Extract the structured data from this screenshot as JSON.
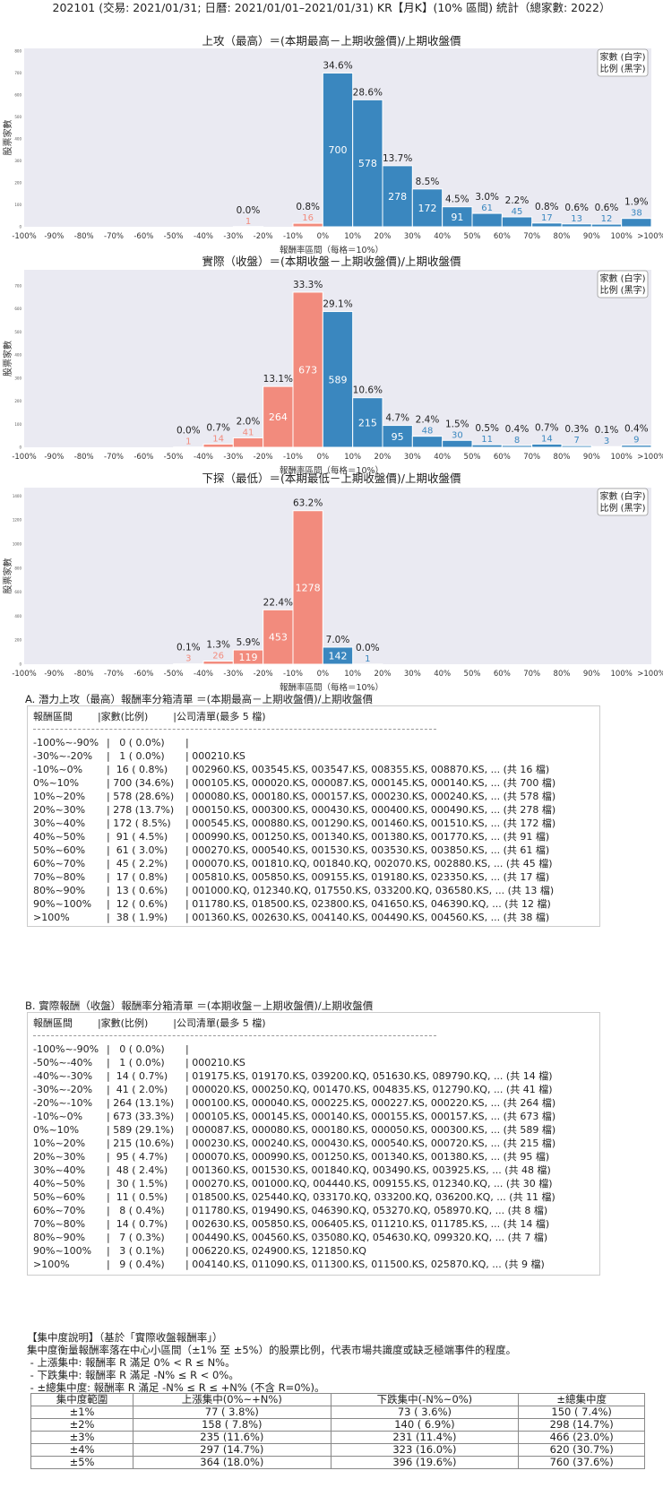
{
  "figure_title": "202101 (交易: 2021/01/31; 日曆: 2021/01/01–2021/01/31) KR【月K】(10% 區間) 統計（總家數: 2022）",
  "chart_data": [
    {
      "type": "bar",
      "title": "上攻（最高）＝(本期最高－上期收盤價)/上期收盤價",
      "xlabel": "報酬率區間（每格＝10%）",
      "ylabel": "股票家數",
      "legend": [
        "家數 (白字)",
        "比例 (黑字)"
      ],
      "legend_position": "top-right",
      "x_ticks": [
        "-100%",
        "-90%",
        "-80%",
        "-70%",
        "-60%",
        "-50%",
        "-40%",
        "-30%",
        "-20%",
        "-10%",
        "0%",
        "10%",
        "20%",
        "30%",
        "40%",
        "50%",
        "60%",
        "70%",
        "80%",
        "90%",
        "100%",
        ">100%"
      ],
      "y_ticks": [
        0,
        100,
        200,
        300,
        400,
        500,
        600,
        700,
        800
      ],
      "ylim": [
        0,
        812
      ],
      "values": [
        0,
        0,
        0,
        0,
        0,
        0,
        0,
        1,
        0,
        16,
        700,
        578,
        278,
        172,
        91,
        61,
        45,
        17,
        13,
        12,
        38
      ],
      "percent_labels": [
        null,
        null,
        null,
        null,
        null,
        null,
        null,
        "0.0%",
        null,
        "0.8%",
        "34.6%",
        "28.6%",
        "13.7%",
        "8.5%",
        "4.5%",
        "3.0%",
        "2.2%",
        "0.8%",
        "0.6%",
        "0.6%",
        "1.9%"
      ],
      "colors": {
        "negative": "#f28b7d",
        "positive": "#3a87bf",
        "background": "#eaeaf2"
      }
    },
    {
      "type": "bar",
      "title": "實際（收盤）＝(本期收盤－上期收盤價)/上期收盤價",
      "xlabel": "報酬率區間（每格＝10%）",
      "ylabel": "股票家數",
      "legend": [
        "家數 (白字)",
        "比例 (黑字)"
      ],
      "legend_position": "top-right",
      "x_ticks": [
        "-100%",
        "-90%",
        "-80%",
        "-70%",
        "-60%",
        "-50%",
        "-40%",
        "-30%",
        "-20%",
        "-10%",
        "0%",
        "10%",
        "20%",
        "30%",
        "40%",
        "50%",
        "60%",
        "70%",
        "80%",
        "90%",
        "100%",
        ">100%"
      ],
      "y_ticks": [
        0,
        100,
        200,
        300,
        400,
        500,
        600,
        700
      ],
      "ylim": [
        0,
        770
      ],
      "values": [
        0,
        0,
        0,
        0,
        0,
        1,
        14,
        41,
        264,
        673,
        589,
        215,
        95,
        48,
        30,
        11,
        8,
        14,
        7,
        3,
        9
      ],
      "percent_labels": [
        null,
        null,
        null,
        null,
        null,
        "0.0%",
        "0.7%",
        "2.0%",
        "13.1%",
        "33.3%",
        "29.1%",
        "10.6%",
        "4.7%",
        "2.4%",
        "1.5%",
        "0.5%",
        "0.4%",
        "0.7%",
        "0.3%",
        "0.1%",
        "0.4%"
      ],
      "colors": {
        "negative": "#f28b7d",
        "positive": "#3a87bf",
        "background": "#eaeaf2"
      }
    },
    {
      "type": "bar",
      "title": "下探（最低）＝(本期最低－上期收盤價)/上期收盤價",
      "xlabel": "報酬率區間（每格＝10%）",
      "ylabel": "股票家數",
      "legend": [
        "家數 (白字)",
        "比例 (黑字)"
      ],
      "legend_position": "top-right",
      "x_ticks": [
        "-100%",
        "-90%",
        "-80%",
        "-70%",
        "-60%",
        "-50%",
        "-40%",
        "-30%",
        "-20%",
        "-10%",
        "0%",
        "10%",
        "20%",
        "30%",
        "40%",
        "50%",
        "60%",
        "70%",
        "80%",
        "90%",
        "100%",
        ">100%"
      ],
      "y_ticks": [
        0,
        200,
        400,
        600,
        800,
        1000,
        1200,
        1400
      ],
      "ylim": [
        0,
        1470
      ],
      "values": [
        0,
        0,
        0,
        0,
        0,
        3,
        26,
        119,
        453,
        1278,
        142,
        1,
        0,
        0,
        0,
        0,
        0,
        0,
        0,
        0,
        0
      ],
      "percent_labels": [
        null,
        null,
        null,
        null,
        null,
        "0.1%",
        "1.3%",
        "5.9%",
        "22.4%",
        "63.2%",
        "7.0%",
        "0.0%",
        null,
        null,
        null,
        null,
        null,
        null,
        null,
        null,
        null
      ],
      "colors": {
        "negative": "#f28b7d",
        "positive": "#3a87bf",
        "background": "#eaeaf2"
      }
    }
  ],
  "section_a": {
    "title": "A. 潛力上攻（最高）報酬率分箱清單 ＝(本期最高－上期收盤價)/上期收盤價",
    "header": "報酬區間        |家數(比例)        |公司清單(最多 5 檔)",
    "rows": [
      {
        "range": "-100%~-90%",
        "count": "|   0 ( 0.0%)",
        "list": "|"
      },
      {
        "range": "-30%~-20%",
        "count": "|   1 ( 0.0%)",
        "list": "| 000210.KS"
      },
      {
        "range": "-10%~0%",
        "count": "|  16 ( 0.8%)",
        "list": "| 002960.KS, 003545.KS, 003547.KS, 008355.KS, 008870.KS, ... (共 16 檔)"
      },
      {
        "range": "0%~10%",
        "count": "| 700 (34.6%)",
        "list": "| 000105.KS, 000020.KS, 000087.KS, 000145.KS, 000140.KS, ... (共 700 檔)"
      },
      {
        "range": "10%~20%",
        "count": "| 578 (28.6%)",
        "list": "| 000080.KS, 000180.KS, 000157.KS, 000230.KS, 000240.KS, ... (共 578 檔)"
      },
      {
        "range": "20%~30%",
        "count": "| 278 (13.7%)",
        "list": "| 000150.KS, 000300.KS, 000430.KS, 000400.KS, 000490.KS, ... (共 278 檔)"
      },
      {
        "range": "30%~40%",
        "count": "| 172 ( 8.5%)",
        "list": "| 000545.KS, 000880.KS, 001290.KS, 001460.KS, 001510.KS, ... (共 172 檔)"
      },
      {
        "range": "40%~50%",
        "count": "|  91 ( 4.5%)",
        "list": "| 000990.KS, 001250.KS, 001340.KS, 001380.KS, 001770.KS, ... (共 91 檔)"
      },
      {
        "range": "50%~60%",
        "count": "|  61 ( 3.0%)",
        "list": "| 000270.KS, 000540.KS, 001530.KS, 003530.KS, 003850.KS, ... (共 61 檔)"
      },
      {
        "range": "60%~70%",
        "count": "|  45 ( 2.2%)",
        "list": "| 000070.KS, 001810.KQ, 001840.KQ, 002070.KS, 002880.KS, ... (共 45 檔)"
      },
      {
        "range": "70%~80%",
        "count": "|  17 ( 0.8%)",
        "list": "| 005810.KS, 005850.KS, 009155.KS, 019180.KS, 023350.KS, ... (共 17 檔)"
      },
      {
        "range": "80%~90%",
        "count": "|  13 ( 0.6%)",
        "list": "| 001000.KQ, 012340.KQ, 017550.KS, 033200.KQ, 036580.KS, ... (共 13 檔)"
      },
      {
        "range": "90%~100%",
        "count": "|  12 ( 0.6%)",
        "list": "| 011780.KS, 018500.KS, 023800.KS, 041650.KS, 046390.KQ, ... (共 12 檔)"
      },
      {
        "range": ">100%",
        "count": "|  38 ( 1.9%)",
        "list": "| 001360.KS, 002630.KS, 004140.KS, 004490.KS, 004560.KS, ... (共 38 檔)"
      }
    ]
  },
  "section_b": {
    "title": "B. 實際報酬（收盤）報酬率分箱清單 ＝(本期收盤－上期收盤價)/上期收盤價",
    "header": "報酬區間        |家數(比例)        |公司清單(最多 5 檔)",
    "rows": [
      {
        "range": "-100%~-90%",
        "count": "|   0 ( 0.0%)",
        "list": "|"
      },
      {
        "range": "-50%~-40%",
        "count": "|   1 ( 0.0%)",
        "list": "| 000210.KS"
      },
      {
        "range": "-40%~-30%",
        "count": "|  14 ( 0.7%)",
        "list": "| 019175.KS, 019170.KS, 039200.KQ, 051630.KS, 089790.KQ, ... (共 14 檔)"
      },
      {
        "range": "-30%~-20%",
        "count": "|  41 ( 2.0%)",
        "list": "| 000020.KS, 000250.KQ, 001470.KS, 004835.KS, 012790.KQ, ... (共 41 檔)"
      },
      {
        "range": "-20%~-10%",
        "count": "| 264 (13.1%)",
        "list": "| 000100.KS, 000040.KS, 000225.KS, 000227.KS, 000220.KS, ... (共 264 檔)"
      },
      {
        "range": "-10%~0%",
        "count": "| 673 (33.3%)",
        "list": "| 000105.KS, 000145.KS, 000140.KS, 000155.KS, 000157.KS, ... (共 673 檔)"
      },
      {
        "range": "0%~10%",
        "count": "| 589 (29.1%)",
        "list": "| 000087.KS, 000080.KS, 000180.KS, 000050.KS, 000300.KS, ... (共 589 檔)"
      },
      {
        "range": "10%~20%",
        "count": "| 215 (10.6%)",
        "list": "| 000230.KS, 000240.KS, 000430.KS, 000540.KS, 000720.KS, ... (共 215 檔)"
      },
      {
        "range": "20%~30%",
        "count": "|  95 ( 4.7%)",
        "list": "| 000070.KS, 000990.KS, 001250.KS, 001340.KS, 001380.KS, ... (共 95 檔)"
      },
      {
        "range": "30%~40%",
        "count": "|  48 ( 2.4%)",
        "list": "| 001360.KS, 001530.KS, 001840.KQ, 003490.KS, 003925.KS, ... (共 48 檔)"
      },
      {
        "range": "40%~50%",
        "count": "|  30 ( 1.5%)",
        "list": "| 000270.KS, 001000.KQ, 004440.KS, 009155.KS, 012340.KQ, ... (共 30 檔)"
      },
      {
        "range": "50%~60%",
        "count": "|  11 ( 0.5%)",
        "list": "| 018500.KS, 025440.KQ, 033170.KQ, 033200.KQ, 036200.KQ, ... (共 11 檔)"
      },
      {
        "range": "60%~70%",
        "count": "|   8 ( 0.4%)",
        "list": "| 011780.KS, 019490.KS, 046390.KQ, 053270.KQ, 058970.KQ, ... (共 8 檔)"
      },
      {
        "range": "70%~80%",
        "count": "|  14 ( 0.7%)",
        "list": "| 002630.KS, 005850.KS, 006405.KS, 011210.KS, 011785.KS, ... (共 14 檔)"
      },
      {
        "range": "80%~90%",
        "count": "|   7 ( 0.3%)",
        "list": "| 004490.KS, 004560.KS, 035080.KQ, 054630.KQ, 099320.KQ, ... (共 7 檔)"
      },
      {
        "range": "90%~100%",
        "count": "|   3 ( 0.1%)",
        "list": "| 006220.KS, 024900.KS, 121850.KQ"
      },
      {
        "range": ">100%",
        "count": "|   9 ( 0.4%)",
        "list": "| 004140.KS, 011090.KS, 011300.KS, 011500.KS, 025870.KQ, ... (共 9 檔)"
      }
    ]
  },
  "concentration": {
    "lines": [
      "【集中度說明】（基於「實際收盤報酬率」）",
      "集中度衡量報酬率落在中心小區間（±1% 至 ±5%）的股票比例，代表市場共識度或缺乏極端事件的程度。",
      " - 上漲集中: 報酬率 R 滿足 0% < R ≤ N%。",
      " - 下跌集中: 報酬率 R 滿足 -N% ≤ R < 0%。",
      " - ±總集中度: 報酬率 R 滿足 -N% ≤ R ≤ +N% (不含 R=0%)。"
    ],
    "table": {
      "headers": [
        "集中度範圍",
        "上漲集中(0%~+N%)",
        "下跌集中(-N%~0%)",
        "±總集中度"
      ],
      "rows": [
        [
          "±1%",
          "77 ( 3.8%)",
          "73 ( 3.6%)",
          "150 ( 7.4%)"
        ],
        [
          "±2%",
          "158 ( 7.8%)",
          "140 ( 6.9%)",
          "298 (14.7%)"
        ],
        [
          "±3%",
          "235 (11.6%)",
          "231 (11.4%)",
          "466 (23.0%)"
        ],
        [
          "±4%",
          "297 (14.7%)",
          "323 (16.0%)",
          "620 (30.7%)"
        ],
        [
          "±5%",
          "364 (18.0%)",
          "396 (19.6%)",
          "760 (37.6%)"
        ]
      ]
    }
  }
}
